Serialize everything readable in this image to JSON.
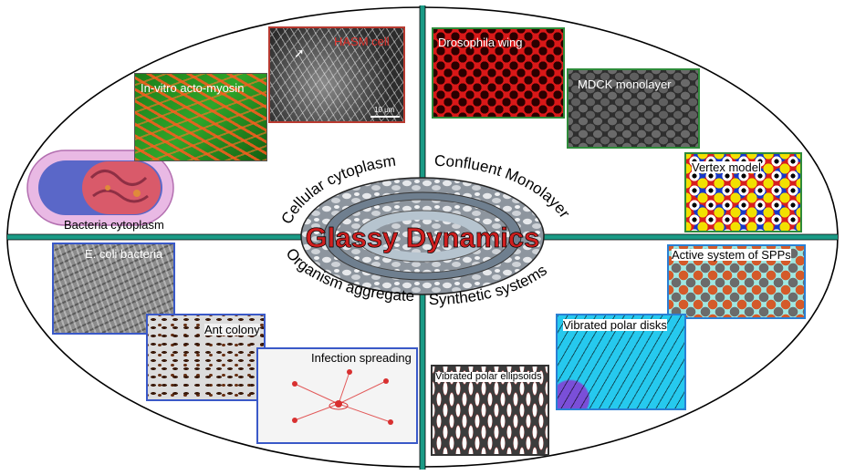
{
  "center_title": "Glassy Dynamics",
  "quadrant_titles": {
    "top_left": "Cellular cytoplasm",
    "top_right": "Confluent Monolayer",
    "bottom_left": "Organism aggregates",
    "bottom_right": "Synthetic systems"
  },
  "panels": {
    "bacteria_cytoplasm": "Bacteria cytoplasm",
    "acto_myosin": "In-vitro acto-myosin",
    "hasm_cell": "HASM cell",
    "scale_bar": "10 μm",
    "drosophila_wing": "Drosophila wing",
    "mdck_monolayer": "MDCK monolayer",
    "vertex_model": "Vertex model",
    "ecoli_bacteria": "E. coli bacteria",
    "ant_colony": "Ant colony",
    "infection_spreading": "Infection spreading",
    "active_spps": "Active system of SPPs",
    "vibrated_polar_disks": "Vibrated polar disks",
    "vibrated_polar_ellipsoids": "Vibrated polar ellipsoids"
  },
  "colors": {
    "divider": "#1a9a85",
    "title_red": "#d01f1f",
    "hasm_border": "#b83a30",
    "drosophila_border": "#2e8b3a",
    "ecoli_border": "#3a59c8",
    "disks_border": "#2a7fd4"
  }
}
